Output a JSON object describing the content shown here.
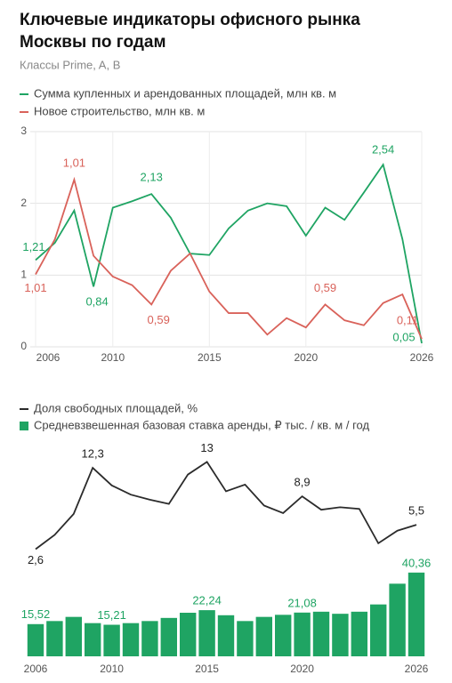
{
  "title": "Ключевые индикаторы офисного рынка Москвы по годам",
  "subtitle": "Классы Prime, A, B",
  "chart_data": [
    {
      "type": "line",
      "x": [
        2006,
        2007,
        2008,
        2009,
        2010,
        2011,
        2012,
        2013,
        2014,
        2015,
        2016,
        2017,
        2018,
        2019,
        2020,
        2021,
        2022,
        2023,
        2024,
        2025,
        2026
      ],
      "xlim": [
        2006,
        2026
      ],
      "xticks": [
        2006,
        2010,
        2015,
        2020,
        2026
      ],
      "ylim": [
        0,
        3
      ],
      "yticks": [
        0,
        1,
        2,
        3
      ],
      "grid": true,
      "annotations": [
        "1,01"
      ],
      "series": [
        {
          "name": "Сумма купленных и арендованных площадей, млн кв. м",
          "color": "#1fa463",
          "values": [
            1.21,
            1.45,
            1.9,
            0.84,
            1.94,
            2.03,
            2.13,
            1.8,
            1.3,
            1.28,
            1.65,
            1.9,
            2.0,
            1.96,
            1.55,
            1.94,
            1.77,
            2.15,
            2.54,
            1.5,
            0.05
          ],
          "value_labels": [
            "1,21",
            null,
            null,
            "0,84",
            null,
            null,
            "2,13",
            null,
            null,
            null,
            null,
            null,
            null,
            null,
            null,
            null,
            null,
            null,
            "2,54",
            null,
            "0,05"
          ]
        },
        {
          "name": "Новое строительство, млн кв. м",
          "color": "#d9625a",
          "values": [
            1.01,
            1.5,
            2.33,
            1.27,
            0.98,
            0.86,
            0.59,
            1.06,
            1.3,
            0.77,
            0.47,
            0.47,
            0.17,
            0.4,
            0.27,
            0.59,
            0.37,
            0.3,
            0.61,
            0.73,
            0.11
          ],
          "value_labels": [
            "1,01",
            null,
            null,
            null,
            null,
            null,
            "0,59",
            null,
            null,
            null,
            null,
            null,
            null,
            null,
            null,
            "0,59",
            null,
            null,
            null,
            null,
            "0,11"
          ]
        }
      ]
    },
    {
      "type": "combo",
      "x": [
        2006,
        2007,
        2008,
        2009,
        2010,
        2011,
        2012,
        2013,
        2014,
        2015,
        2016,
        2017,
        2018,
        2019,
        2020,
        2021,
        2022,
        2023,
        2024,
        2025,
        2026
      ],
      "xlim": [
        2006,
        2026
      ],
      "xticks": [
        2006,
        2010,
        2015,
        2020,
        2026
      ],
      "ylim": [
        0,
        14
      ],
      "y2lim": [
        0,
        42
      ],
      "series": [
        {
          "name": "Доля свободных  площадей, %",
          "color": "#2b2b2b",
          "type": "line",
          "values": [
            2.6,
            4.3,
            6.8,
            12.3,
            10.2,
            9.1,
            8.5,
            8.0,
            11.5,
            13,
            9.5,
            10.3,
            7.8,
            6.9,
            8.9,
            7.3,
            7.6,
            7.4,
            3.3,
            4.8,
            5.5
          ],
          "value_labels": [
            "2,6",
            null,
            null,
            "12,3",
            null,
            null,
            null,
            null,
            null,
            "13",
            null,
            null,
            null,
            null,
            "8,9",
            null,
            null,
            null,
            null,
            null,
            "5,5"
          ]
        },
        {
          "name": "Средневзвешенная базовая ставка аренды, ₽ тыс. / кв. м / год",
          "color": "#1fa463",
          "type": "bar",
          "axis": "y2",
          "values": [
            15.52,
            17,
            19,
            16,
            15.21,
            16,
            17,
            18.5,
            21,
            22.24,
            19.8,
            17,
            19,
            20,
            21.08,
            21.5,
            20.5,
            21.5,
            25,
            35,
            40.36
          ],
          "value_labels": [
            "15,52",
            null,
            null,
            null,
            "15,21",
            null,
            null,
            null,
            null,
            "22,24",
            null,
            null,
            null,
            null,
            "21,08",
            null,
            null,
            null,
            null,
            null,
            "40,36"
          ]
        }
      ]
    }
  ]
}
